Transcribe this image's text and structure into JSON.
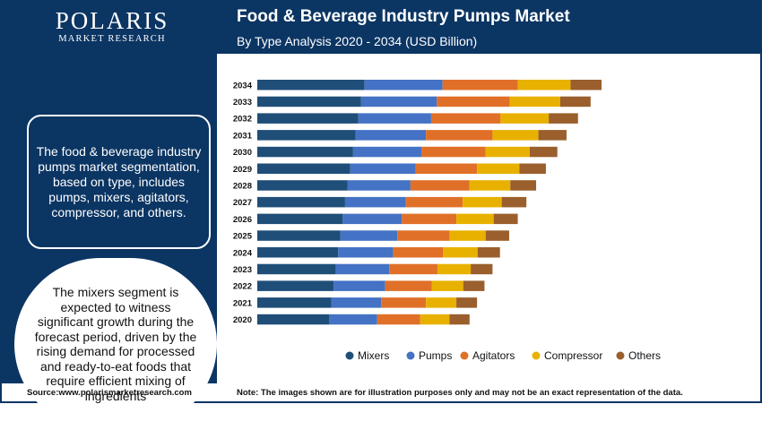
{
  "header": {
    "logo_name": "POLARIS",
    "logo_sub": "MARKET RESEARCH",
    "title": "Food & Beverage Industry Pumps Market",
    "subtitle": "By Type Analysis 2020 - 2034 (USD Billion)"
  },
  "sidebar": {
    "summary": "The food & beverage industry pumps market segmentation, based on type, includes pumps, mixers, agitators, compressor, and others.",
    "highlight": "The mixers segment is expected to witness significant growth during the forecast period, driven by the rising demand for processed and ready-to-eat foods that require efficient mixing of ingredients"
  },
  "footer": {
    "source": "Source:www.polarismarketresearch.com",
    "note": "Note: The images shown are for illustration purposes only and may not be an exact representation of the data."
  },
  "colors": {
    "brand": "#0b3563",
    "Mixers": "#1f4e79",
    "Pumps": "#4472c4",
    "Agitators": "#e07028",
    "Compressor": "#e8b100",
    "Others": "#9a5f2c"
  },
  "chart_data": {
    "type": "bar",
    "orientation": "horizontal",
    "stacked": true,
    "categories": [
      "2034",
      "2033",
      "2032",
      "2031",
      "2030",
      "2029",
      "2028",
      "2027",
      "2026",
      "2025",
      "2024",
      "2023",
      "2022",
      "2021",
      "2020"
    ],
    "series": [
      {
        "name": "Mixers",
        "values": [
          18.7,
          18.1,
          17.6,
          17.1,
          16.7,
          16.2,
          15.7,
          15.3,
          14.9,
          14.5,
          14.1,
          13.7,
          13.3,
          12.9,
          12.5
        ]
      },
      {
        "name": "Pumps",
        "values": [
          13.6,
          13.2,
          12.7,
          12.3,
          11.9,
          11.4,
          11.0,
          10.6,
          10.3,
          9.9,
          9.6,
          9.3,
          9.0,
          8.7,
          8.4
        ]
      },
      {
        "name": "Agitators",
        "values": [
          13.1,
          12.7,
          12.1,
          11.6,
          11.2,
          10.7,
          10.3,
          9.9,
          9.5,
          9.1,
          8.7,
          8.4,
          8.1,
          7.8,
          7.5
        ]
      },
      {
        "name": "Compressor",
        "values": [
          9.2,
          8.8,
          8.4,
          8.0,
          7.7,
          7.4,
          7.1,
          6.8,
          6.5,
          6.3,
          6.0,
          5.8,
          5.5,
          5.3,
          5.1
        ]
      },
      {
        "name": "Others",
        "values": [
          5.4,
          5.3,
          5.1,
          4.9,
          4.8,
          4.6,
          4.5,
          4.3,
          4.2,
          4.1,
          3.9,
          3.8,
          3.7,
          3.6,
          3.5
        ]
      }
    ],
    "legend": [
      "Mixers",
      "Pumps",
      "Agitators",
      "Compressor",
      "Others"
    ],
    "legend_position": "bottom",
    "grid": false,
    "xaxis_visible": false
  }
}
